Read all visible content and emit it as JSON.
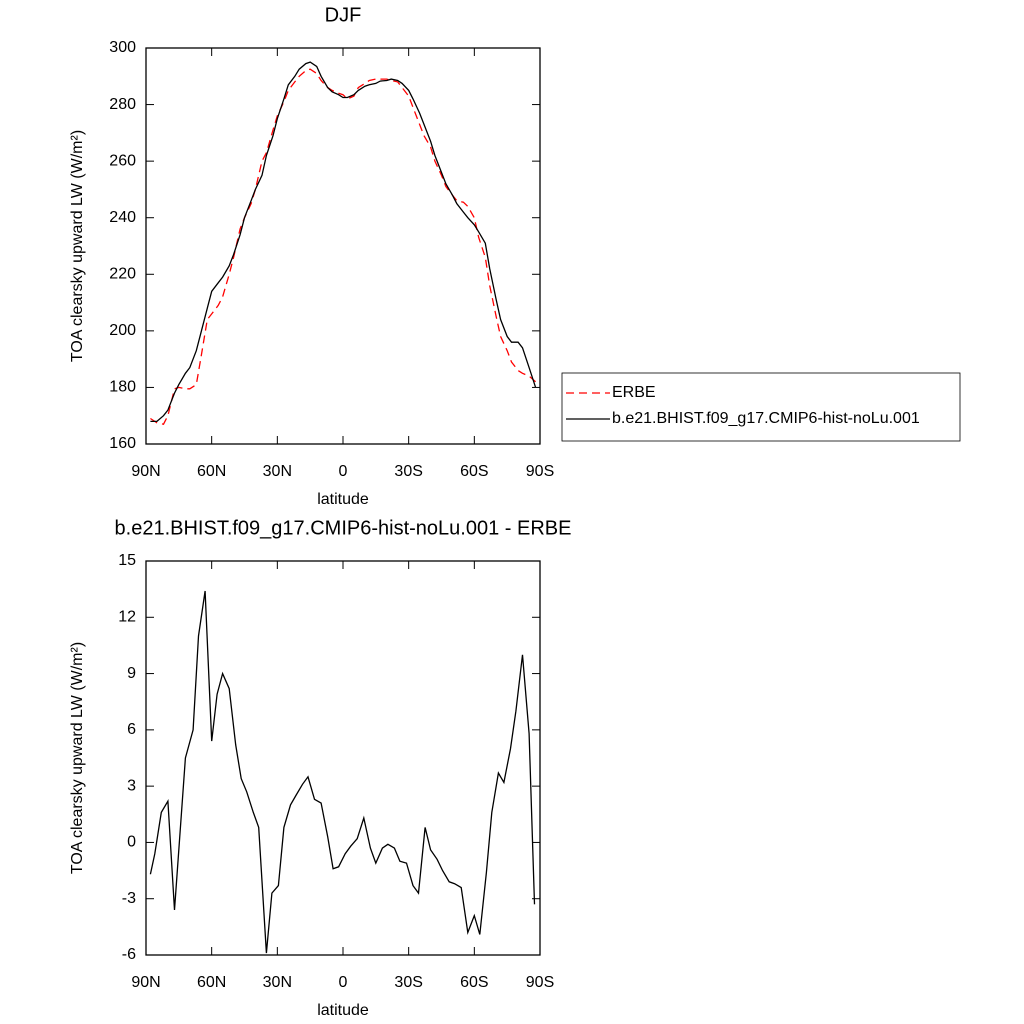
{
  "chart_data": [
    {
      "type": "line",
      "title": "DJF",
      "x_label": "latitude",
      "y_label": "TOA clearsky upward LW (W/m²)",
      "xlim": [
        90,
        -90
      ],
      "xticks": [
        {
          "value": 90,
          "label": "90N"
        },
        {
          "value": 60,
          "label": "60N"
        },
        {
          "value": 30,
          "label": "30N"
        },
        0,
        {
          "value": -30,
          "label": "30S"
        },
        {
          "value": -60,
          "label": "60S"
        },
        {
          "value": -90,
          "label": "90S"
        }
      ],
      "ylim": [
        160,
        300
      ],
      "yticks": [
        160,
        180,
        200,
        220,
        240,
        260,
        280,
        300
      ],
      "legend": "right",
      "x": [
        88,
        85,
        82,
        80,
        77,
        75,
        72,
        70,
        67,
        65,
        62,
        60,
        57,
        55,
        52,
        50,
        47,
        45,
        42,
        40,
        37,
        35,
        32,
        30,
        27,
        25,
        22,
        20,
        17,
        15,
        12,
        10,
        7,
        5,
        2,
        0,
        -2,
        -5,
        -7,
        -10,
        -12,
        -15,
        -17,
        -20,
        -22,
        -25,
        -27,
        -30,
        -32,
        -35,
        -37,
        -40,
        -42,
        -45,
        -47,
        -50,
        -52,
        -55,
        -57,
        -60,
        -62,
        -65,
        -67,
        -70,
        -72,
        -75,
        -77,
        -80,
        -82,
        -85,
        -88
      ],
      "series": [
        {
          "name": "ERBE",
          "color": "#ff0000",
          "dashed": true,
          "values": [
            169,
            167.5,
            167,
            170,
            179.5,
            180,
            179.5,
            179.5,
            181,
            190,
            204,
            206,
            209,
            212,
            220,
            226,
            236,
            240,
            245,
            250,
            260,
            263,
            271,
            276,
            281,
            285,
            288,
            290,
            292,
            292.5,
            291,
            288.5,
            286,
            285,
            284,
            283.5,
            282,
            283,
            286,
            287.5,
            288.5,
            289,
            289,
            289,
            288.5,
            288,
            286,
            283,
            279,
            273,
            269,
            265,
            260,
            255,
            251,
            248,
            246,
            245.5,
            244,
            240,
            233,
            226,
            216,
            205,
            198,
            193,
            189,
            186,
            185,
            184,
            182
          ]
        },
        {
          "name": "b.e21.BHIST.f09_g17.CMIP6-hist-noLu.001",
          "color": "#000000",
          "dashed": false,
          "values": [
            168,
            168,
            170,
            172,
            178,
            181,
            185,
            187,
            193,
            199,
            208,
            214,
            217,
            219,
            223,
            227,
            234,
            240,
            246,
            250,
            255,
            262,
            269,
            275,
            282,
            287,
            290,
            292.5,
            294.5,
            295,
            293.5,
            290,
            286,
            284.5,
            283.5,
            282.5,
            282.5,
            283.5,
            285,
            286.5,
            287,
            287.5,
            288.3,
            288.5,
            289,
            288.5,
            287.5,
            285,
            282,
            277,
            273,
            267,
            262,
            256,
            252,
            248,
            245,
            242,
            240,
            237.5,
            235,
            231,
            222,
            211,
            204,
            198,
            196,
            196,
            194,
            187,
            180
          ]
        }
      ]
    },
    {
      "type": "line",
      "title": "b.e21.BHIST.f09_g17.CMIP6-hist-noLu.001 - ERBE",
      "x_label": "latitude",
      "y_label": "TOA clearsky upward LW (W/m²)",
      "xlim": [
        90,
        -90
      ],
      "xticks": [
        {
          "value": 90,
          "label": "90N"
        },
        {
          "value": 60,
          "label": "60N"
        },
        {
          "value": 30,
          "label": "30N"
        },
        0,
        {
          "value": -30,
          "label": "30S"
        },
        {
          "value": -60,
          "label": "60S"
        },
        {
          "value": -90,
          "label": "90S"
        }
      ],
      "ylim": [
        -6,
        15
      ],
      "yticks": [
        -6,
        -3,
        0,
        3,
        6,
        9,
        12,
        15
      ],
      "x": [
        88,
        86,
        83,
        80,
        77,
        72,
        68.5,
        66,
        63,
        60,
        57.5,
        55,
        52,
        49,
        46.5,
        44,
        41,
        38.5,
        35,
        32.5,
        29.5,
        27,
        24,
        21.5,
        18.5,
        16,
        13,
        10,
        7,
        4.5,
        2,
        -1,
        -3.5,
        -6.5,
        -9.5,
        -12.5,
        -15,
        -18,
        -20.5,
        -23.5,
        -26,
        -29,
        -32,
        -34.5,
        -37.5,
        -40,
        -43,
        -45.5,
        -48.5,
        -51,
        -54,
        -57,
        -60,
        -62.5,
        -65.5,
        -68,
        -71,
        -73.5,
        -76.5,
        -79,
        -82,
        -85,
        -87.5
      ],
      "color": "#000000",
      "values": [
        -1.7,
        -0.6,
        1.6,
        2.2,
        -3.6,
        4.5,
        6,
        11,
        13.4,
        5.4,
        7.9,
        9,
        8.2,
        5.2,
        3.4,
        2.7,
        1.6,
        0.8,
        -5.9,
        -2.7,
        -2.3,
        0.8,
        2,
        2.5,
        3.1,
        3.5,
        2.3,
        2.1,
        0.3,
        -1.4,
        -1.3,
        -0.6,
        -0.2,
        0.2,
        1.3,
        -0.3,
        -1.1,
        -0.3,
        -0.1,
        -0.3,
        -1,
        -1.1,
        -2.3,
        -2.7,
        0.8,
        -0.4,
        -0.9,
        -1.5,
        -2.1,
        -2.2,
        -2.4,
        -4.8,
        -3.9,
        -4.9,
        -1.6,
        1.6,
        3.7,
        3.2,
        5,
        7,
        10,
        5.8,
        -3.3
      ]
    }
  ]
}
